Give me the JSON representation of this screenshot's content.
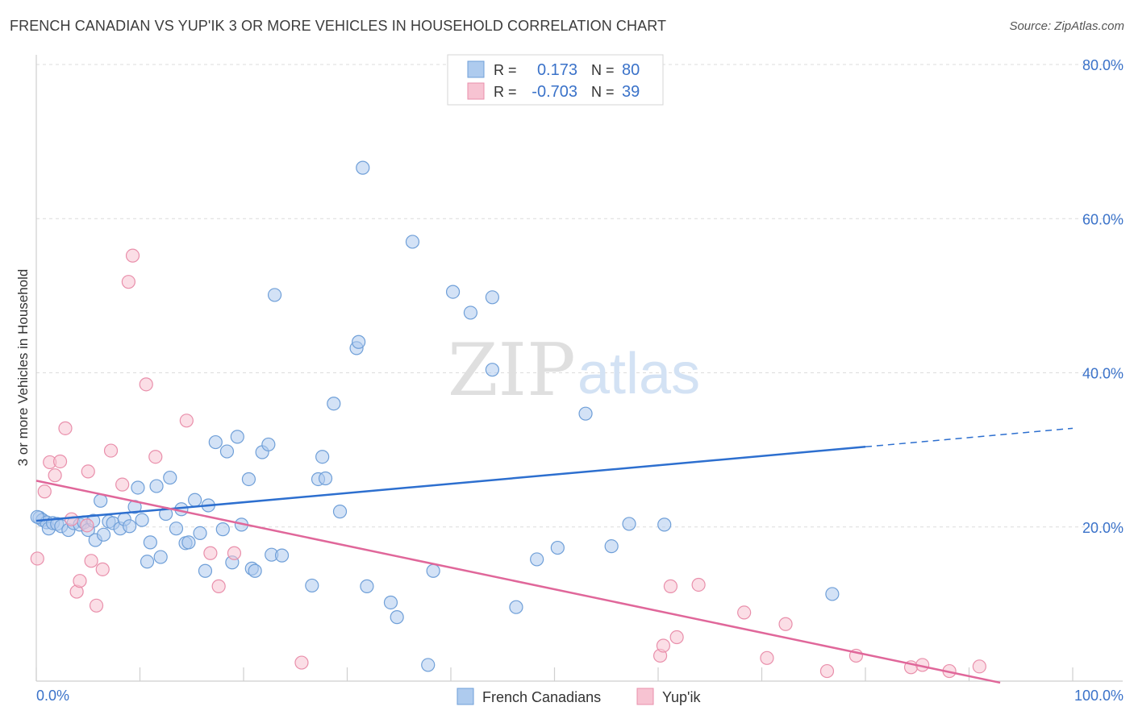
{
  "header": {
    "title": "FRENCH CANADIAN VS YUP'IK 3 OR MORE VEHICLES IN HOUSEHOLD CORRELATION CHART",
    "source": "Source: ZipAtlas.com"
  },
  "watermark": {
    "zip": "ZIP",
    "atlas": "atlas"
  },
  "legend_top": {
    "rows": [
      {
        "r_label": "R = ",
        "r_value": "0.173",
        "n_label": "N = ",
        "n_value": "80"
      },
      {
        "r_label": "R = ",
        "r_value": "-0.703",
        "n_label": "N = ",
        "n_value": "39"
      }
    ]
  },
  "legend_bottom": {
    "items": [
      "French Canadians",
      "Yup'ik"
    ]
  },
  "colors": {
    "blue_fill": "#aecbee",
    "blue_stroke": "#6f9fd8",
    "blue_line": "#2d6fcf",
    "pink_fill": "#f7c3d2",
    "pink_stroke": "#e98fab",
    "pink_line": "#e0679a",
    "value_text": "#3a72c9",
    "label_text": "#333333"
  },
  "chart_data": {
    "type": "scatter",
    "title": "FRENCH CANADIAN VS YUP'IK 3 OR MORE VEHICLES IN HOUSEHOLD CORRELATION CHART",
    "xlabel": "",
    "ylabel": "3 or more Vehicles in Household",
    "xlim": [
      0,
      100
    ],
    "ylim": [
      0,
      80
    ],
    "x_tick_labels": [
      "0.0%",
      "100.0%"
    ],
    "y_ticks": [
      20,
      40,
      60,
      80
    ],
    "y_tick_labels": [
      "20.0%",
      "40.0%",
      "60.0%",
      "80.0%"
    ],
    "grid": true,
    "series": [
      {
        "name": "French Canadians",
        "color": "#aecbee",
        "r": 0.173,
        "n": 80,
        "trend": {
          "x0": 0,
          "y0": 20.8,
          "x1": 80,
          "y1": 30.4,
          "dash_to_x": 100,
          "dash_to_y": 32.8
        },
        "points": [
          [
            0.3,
            21.2
          ],
          [
            0.6,
            20.9
          ],
          [
            1.0,
            20.6
          ],
          [
            1.2,
            19.8
          ],
          [
            1.6,
            20.5
          ],
          [
            2.0,
            20.4
          ],
          [
            2.4,
            20.1
          ],
          [
            3.1,
            19.6
          ],
          [
            3.6,
            20.5
          ],
          [
            4.2,
            20.3
          ],
          [
            4.6,
            20.6
          ],
          [
            5.0,
            19.6
          ],
          [
            5.5,
            20.8
          ],
          [
            5.7,
            18.3
          ],
          [
            6.2,
            23.4
          ],
          [
            6.5,
            19.0
          ],
          [
            7.0,
            20.7
          ],
          [
            7.4,
            20.5
          ],
          [
            8.1,
            19.8
          ],
          [
            8.5,
            21.0
          ],
          [
            9.0,
            20.1
          ],
          [
            9.5,
            22.6
          ],
          [
            9.8,
            25.1
          ],
          [
            10.2,
            20.9
          ],
          [
            10.7,
            15.5
          ],
          [
            11.0,
            18.0
          ],
          [
            11.6,
            25.3
          ],
          [
            12.0,
            16.1
          ],
          [
            12.5,
            21.7
          ],
          [
            12.9,
            26.4
          ],
          [
            13.5,
            19.8
          ],
          [
            14.0,
            22.3
          ],
          [
            14.4,
            17.9
          ],
          [
            14.7,
            18.0
          ],
          [
            15.3,
            23.5
          ],
          [
            15.8,
            19.2
          ],
          [
            16.3,
            14.3
          ],
          [
            16.6,
            22.8
          ],
          [
            17.3,
            31.0
          ],
          [
            18.0,
            19.7
          ],
          [
            18.4,
            29.8
          ],
          [
            18.9,
            15.4
          ],
          [
            19.4,
            31.7
          ],
          [
            19.8,
            20.3
          ],
          [
            20.5,
            26.2
          ],
          [
            20.8,
            14.6
          ],
          [
            21.1,
            14.3
          ],
          [
            21.8,
            29.7
          ],
          [
            22.4,
            30.7
          ],
          [
            22.7,
            16.4
          ],
          [
            23.0,
            50.1
          ],
          [
            23.7,
            16.3
          ],
          [
            26.6,
            12.4
          ],
          [
            27.2,
            26.2
          ],
          [
            27.6,
            29.1
          ],
          [
            27.9,
            26.3
          ],
          [
            28.7,
            36.0
          ],
          [
            29.3,
            22.0
          ],
          [
            30.9,
            43.2
          ],
          [
            31.1,
            44.0
          ],
          [
            31.5,
            66.6
          ],
          [
            31.9,
            12.3
          ],
          [
            34.2,
            10.2
          ],
          [
            34.8,
            8.3
          ],
          [
            36.3,
            57.0
          ],
          [
            37.8,
            2.1
          ],
          [
            38.3,
            14.3
          ],
          [
            40.2,
            50.5
          ],
          [
            41.9,
            47.8
          ],
          [
            44.0,
            49.8
          ],
          [
            44.0,
            40.4
          ],
          [
            46.3,
            9.6
          ],
          [
            48.3,
            15.8
          ],
          [
            50.3,
            17.3
          ],
          [
            53.0,
            34.7
          ],
          [
            55.5,
            17.5
          ],
          [
            57.2,
            20.4
          ],
          [
            60.6,
            20.3
          ],
          [
            76.8,
            11.3
          ],
          [
            0.1,
            21.3
          ]
        ]
      },
      {
        "name": "Yup'ik",
        "color": "#f7c3d2",
        "r": -0.703,
        "n": 39,
        "trend": {
          "x0": 0,
          "y0": 26.0,
          "x1": 93,
          "y1": -0.2
        },
        "points": [
          [
            0.1,
            15.9
          ],
          [
            0.8,
            24.6
          ],
          [
            1.3,
            28.4
          ],
          [
            1.8,
            26.7
          ],
          [
            2.3,
            28.5
          ],
          [
            2.8,
            32.8
          ],
          [
            3.4,
            21.0
          ],
          [
            3.9,
            11.6
          ],
          [
            4.2,
            13.0
          ],
          [
            4.9,
            20.2
          ],
          [
            5.0,
            27.2
          ],
          [
            5.3,
            15.6
          ],
          [
            5.8,
            9.8
          ],
          [
            6.4,
            14.5
          ],
          [
            7.2,
            29.9
          ],
          [
            8.3,
            25.5
          ],
          [
            8.9,
            51.8
          ],
          [
            9.3,
            55.2
          ],
          [
            10.6,
            38.5
          ],
          [
            11.5,
            29.1
          ],
          [
            14.5,
            33.8
          ],
          [
            16.8,
            16.6
          ],
          [
            17.6,
            12.3
          ],
          [
            19.1,
            16.6
          ],
          [
            25.6,
            2.4
          ],
          [
            60.2,
            3.3
          ],
          [
            60.5,
            4.6
          ],
          [
            61.2,
            12.3
          ],
          [
            61.8,
            5.7
          ],
          [
            63.9,
            12.5
          ],
          [
            68.3,
            8.9
          ],
          [
            70.5,
            3.0
          ],
          [
            72.3,
            7.4
          ],
          [
            76.3,
            1.3
          ],
          [
            79.1,
            3.3
          ],
          [
            84.4,
            1.8
          ],
          [
            85.5,
            2.1
          ],
          [
            88.1,
            1.3
          ],
          [
            91.0,
            1.9
          ]
        ]
      }
    ]
  }
}
